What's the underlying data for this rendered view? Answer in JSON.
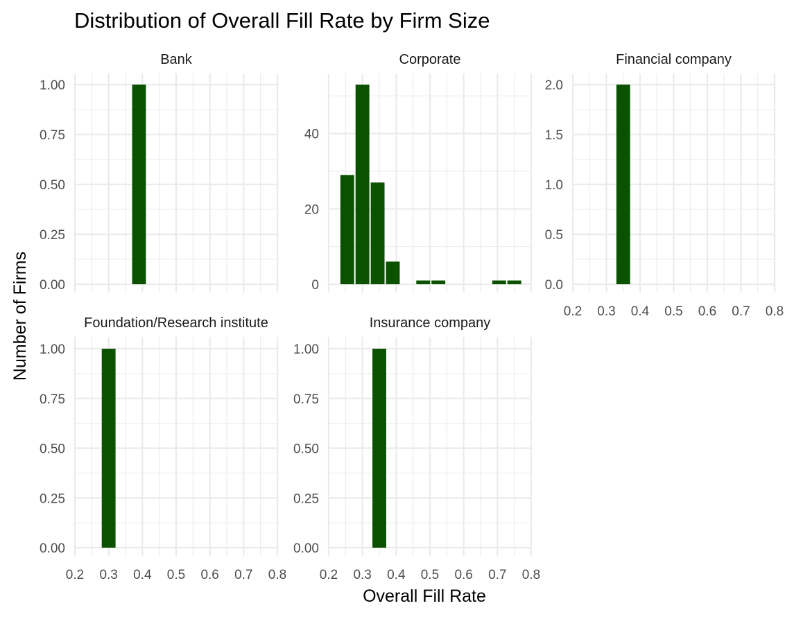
{
  "chart_data": {
    "type": "bar",
    "title": "Distribution of Overall Fill Rate by Firm Size",
    "xlabel": "Overall Fill Rate",
    "ylabel": "Number of Firms",
    "xlim": [
      0.2,
      0.8
    ],
    "x_ticks": [
      "0.2",
      "0.3",
      "0.4",
      "0.5",
      "0.6",
      "0.7",
      "0.8"
    ],
    "grid": true,
    "bar_color": "#0b5200",
    "bin_width": 0.045,
    "facets": [
      {
        "name": "Bank",
        "ylim": [
          0,
          1
        ],
        "y_ticks": [
          "0.00",
          "0.25",
          "0.50",
          "0.75",
          "1.00"
        ],
        "y_tick_values": [
          0,
          0.25,
          0.5,
          0.75,
          1
        ],
        "bins": [
          {
            "x": 0.39,
            "count": 1
          }
        ]
      },
      {
        "name": "Corporate",
        "ylim": [
          0,
          53
        ],
        "y_ticks": [
          "0",
          "20",
          "40"
        ],
        "y_tick_values": [
          0,
          20,
          40
        ],
        "bins": [
          {
            "x": 0.255,
            "count": 29
          },
          {
            "x": 0.3,
            "count": 53
          },
          {
            "x": 0.345,
            "count": 27
          },
          {
            "x": 0.39,
            "count": 6
          },
          {
            "x": 0.48,
            "count": 1
          },
          {
            "x": 0.525,
            "count": 1
          },
          {
            "x": 0.705,
            "count": 1
          },
          {
            "x": 0.75,
            "count": 1
          }
        ]
      },
      {
        "name": "Financial company",
        "ylim": [
          0,
          2
        ],
        "y_ticks": [
          "0.0",
          "0.5",
          "1.0",
          "1.5",
          "2.0"
        ],
        "y_tick_values": [
          0,
          0.5,
          1,
          1.5,
          2
        ],
        "bins": [
          {
            "x": 0.35,
            "count": 2
          }
        ]
      },
      {
        "name": "Foundation/Research institute",
        "ylim": [
          0,
          1
        ],
        "y_ticks": [
          "0.00",
          "0.25",
          "0.50",
          "0.75",
          "1.00"
        ],
        "y_tick_values": [
          0,
          0.25,
          0.5,
          0.75,
          1
        ],
        "bins": [
          {
            "x": 0.3,
            "count": 1
          }
        ]
      },
      {
        "name": "Insurance company",
        "ylim": [
          0,
          1
        ],
        "y_ticks": [
          "0.00",
          "0.25",
          "0.50",
          "0.75",
          "1.00"
        ],
        "y_tick_values": [
          0,
          0.25,
          0.5,
          0.75,
          1
        ],
        "bins": [
          {
            "x": 0.35,
            "count": 1
          }
        ]
      }
    ]
  }
}
